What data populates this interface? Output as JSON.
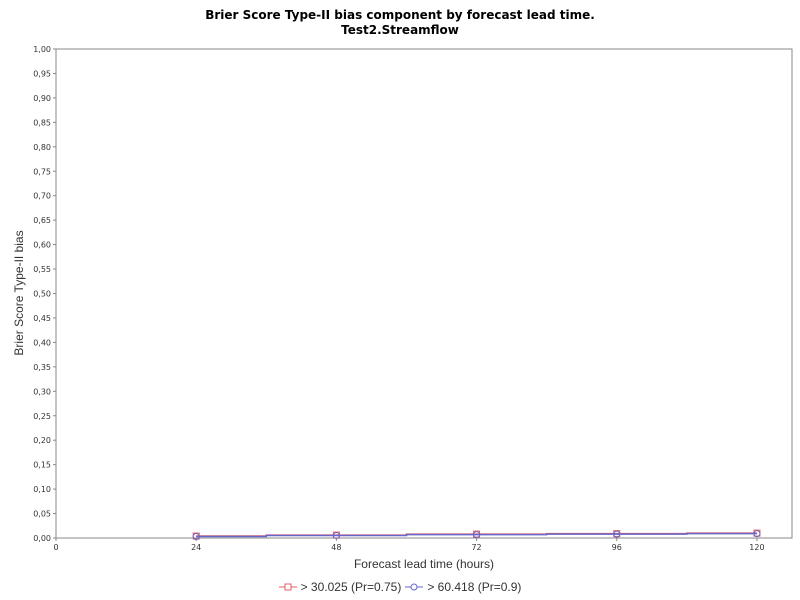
{
  "chart_data": {
    "type": "line",
    "title": "Brier Score Type-II bias component by forecast lead time.",
    "subtitle": "Test2.Streamflow",
    "xlabel": "Forecast lead time (hours)",
    "ylabel": "Brier Score Type-II bias",
    "xlim": [
      0,
      126
    ],
    "ylim": [
      0,
      1
    ],
    "xticks": [
      0,
      24,
      48,
      72,
      96,
      120
    ],
    "xtick_labels": [
      "0",
      "24",
      "48",
      "72",
      "96",
      "120"
    ],
    "yticks": [
      0,
      0.05,
      0.1,
      0.15,
      0.2,
      0.25,
      0.3,
      0.35,
      0.4,
      0.45,
      0.5,
      0.55,
      0.6,
      0.65,
      0.7,
      0.75,
      0.8,
      0.85,
      0.9,
      0.95,
      1.0
    ],
    "ytick_labels": [
      "0,00",
      "0,05",
      "0,10",
      "0,15",
      "0,20",
      "0,25",
      "0,30",
      "0,35",
      "0,40",
      "0,45",
      "0,50",
      "0,55",
      "0,60",
      "0,65",
      "0,70",
      "0,75",
      "0,80",
      "0,85",
      "0,90",
      "0,95",
      "1,00"
    ],
    "grid": false,
    "legend_position": "bottom",
    "x": [
      24,
      48,
      72,
      96,
      120
    ],
    "series": [
      {
        "name": "> 30.025 (Pr=0.75)",
        "color": "#e06060",
        "marker": "square",
        "values": [
          0.004,
          0.006,
          0.008,
          0.009,
          0.01
        ]
      },
      {
        "name": "> 60.418 (Pr=0.9)",
        "color": "#6666cc",
        "marker": "circle",
        "values": [
          0.003,
          0.005,
          0.007,
          0.008,
          0.009
        ]
      }
    ]
  }
}
